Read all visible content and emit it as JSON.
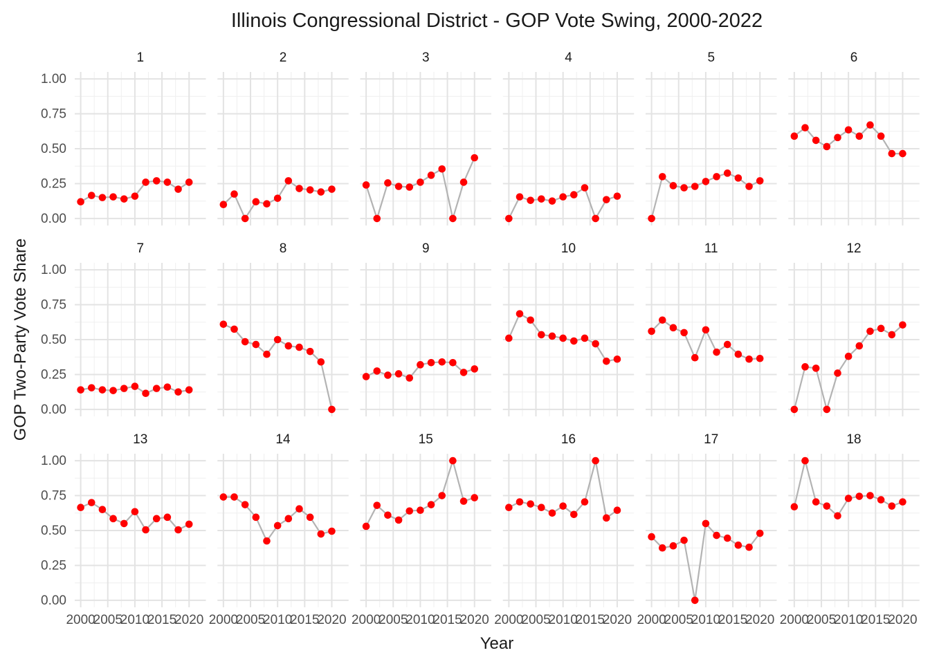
{
  "chart_data": {
    "type": "line",
    "facet": "wrap",
    "title": "Illinois Congressional District - GOP Vote Swing, 2000-2022",
    "xlabel": "Year",
    "ylabel": "GOP Two-Party Vote Share",
    "xlim": [
      2000,
      2022
    ],
    "ylim": [
      0,
      1
    ],
    "x_ticks": [
      2000,
      2005,
      2010,
      2015,
      2020
    ],
    "x_tick_labels": [
      "2000",
      "2005",
      "2010",
      "2015",
      "2020"
    ],
    "y_ticks": [
      0,
      0.25,
      0.5,
      0.75,
      1
    ],
    "y_tick_labels": [
      "0.00",
      "0.25",
      "0.50",
      "0.75",
      "1.00"
    ],
    "grid": true,
    "line_color": "#b3b3b3",
    "point_color": "#ff0000",
    "x": [
      2000,
      2002,
      2004,
      2006,
      2008,
      2010,
      2012,
      2014,
      2016,
      2018,
      2020,
      2022
    ],
    "series": [
      {
        "name": "1",
        "values": [
          0.12,
          0.165,
          0.15,
          0.155,
          0.14,
          0.16,
          0.26,
          0.27,
          0.26,
          0.21,
          0.26,
          null
        ]
      },
      {
        "name": "2",
        "values": [
          0.1,
          0.175,
          0.0,
          0.12,
          0.105,
          0.145,
          0.27,
          0.215,
          0.205,
          0.19,
          0.21,
          null
        ]
      },
      {
        "name": "3",
        "values": [
          0.24,
          0.0,
          0.255,
          0.23,
          0.225,
          0.26,
          0.31,
          0.355,
          0.0,
          0.26,
          0.435,
          null
        ]
      },
      {
        "name": "4",
        "values": [
          0.0,
          0.155,
          0.13,
          0.14,
          0.125,
          0.155,
          0.17,
          0.22,
          0.0,
          0.135,
          0.16,
          null
        ]
      },
      {
        "name": "5",
        "values": [
          0.0,
          0.3,
          0.235,
          0.22,
          0.23,
          0.265,
          0.3,
          0.325,
          0.29,
          0.23,
          0.27,
          null
        ]
      },
      {
        "name": "6",
        "values": [
          0.59,
          0.65,
          0.56,
          0.515,
          0.58,
          0.635,
          0.59,
          0.67,
          0.59,
          0.465,
          0.465,
          null
        ]
      },
      {
        "name": "7",
        "values": [
          0.14,
          0.155,
          0.14,
          0.135,
          0.15,
          0.165,
          0.115,
          0.15,
          0.16,
          0.125,
          0.14,
          null
        ]
      },
      {
        "name": "8",
        "values": [
          0.61,
          0.575,
          0.485,
          0.465,
          0.395,
          0.5,
          0.455,
          0.445,
          0.415,
          0.34,
          0.0,
          null
        ]
      },
      {
        "name": "9",
        "values": [
          0.235,
          0.275,
          0.245,
          0.255,
          0.225,
          0.32,
          0.335,
          0.34,
          0.335,
          0.265,
          0.29,
          null
        ]
      },
      {
        "name": "10",
        "values": [
          0.51,
          0.685,
          0.64,
          0.535,
          0.525,
          0.51,
          0.49,
          0.51,
          0.47,
          0.345,
          0.36,
          null
        ]
      },
      {
        "name": "11",
        "values": [
          0.56,
          0.64,
          0.585,
          0.55,
          0.37,
          0.57,
          0.41,
          0.465,
          0.395,
          0.36,
          0.365,
          null
        ]
      },
      {
        "name": "12",
        "values": [
          0.0,
          0.305,
          0.295,
          0.0,
          0.26,
          0.38,
          0.455,
          0.56,
          0.58,
          0.535,
          0.605,
          null
        ]
      },
      {
        "name": "13",
        "values": [
          0.665,
          0.7,
          0.65,
          0.585,
          0.55,
          0.635,
          0.505,
          0.585,
          0.595,
          0.505,
          0.545,
          null
        ]
      },
      {
        "name": "14",
        "values": [
          0.74,
          0.74,
          0.685,
          0.595,
          0.425,
          0.535,
          0.585,
          0.655,
          0.595,
          0.475,
          0.495,
          null
        ]
      },
      {
        "name": "15",
        "values": [
          0.53,
          0.68,
          0.61,
          0.575,
          0.64,
          0.645,
          0.685,
          0.75,
          1.0,
          0.71,
          0.735,
          null
        ]
      },
      {
        "name": "16",
        "values": [
          0.665,
          0.705,
          0.69,
          0.665,
          0.625,
          0.675,
          0.615,
          0.705,
          1.0,
          0.59,
          0.645,
          null
        ]
      },
      {
        "name": "17",
        "values": [
          0.455,
          0.375,
          0.39,
          0.43,
          0.0,
          0.55,
          0.465,
          0.445,
          0.395,
          0.38,
          0.48,
          null
        ]
      },
      {
        "name": "18",
        "values": [
          0.67,
          1.0,
          0.705,
          0.675,
          0.605,
          0.73,
          0.745,
          0.75,
          0.72,
          0.675,
          0.705,
          null
        ]
      }
    ]
  }
}
